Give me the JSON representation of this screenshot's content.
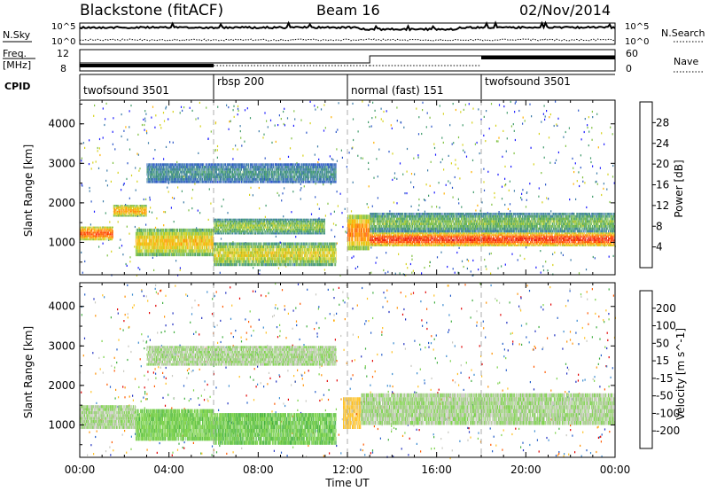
{
  "header": {
    "title": "Blackstone (fitACF)",
    "beam": "Beam 16",
    "date": "02/Nov/2014"
  },
  "top_panels": {
    "nsky_label": "N.Sky",
    "nsearch_label": "N.Search",
    "freq_label_1": "Freq.",
    "freq_label_2": "[MHz]",
    "nave_label": "Nave",
    "cpid_label": "CPID",
    "left_tick_top": "10^5",
    "left_tick_bottom": "10^0",
    "right_tick_top": "10^5",
    "right_tick_bottom": "10^0",
    "freq_tick_top": "12",
    "freq_tick_bottom": "8",
    "nave_tick_top": "60",
    "nave_tick_bottom": "0"
  },
  "cpid_segments": [
    {
      "label": "twofsound 3501",
      "start_hour": 0
    },
    {
      "label": "rbsp 200",
      "start_hour": 6
    },
    {
      "label": "normal (fast) 151",
      "start_hour": 12
    },
    {
      "label": "twofsound 3501",
      "start_hour": 18
    }
  ],
  "axes": {
    "ylabel": "Slant Range [km]",
    "xlabel": "Time UT",
    "xticks": [
      "00:00",
      "04:00",
      "08:00",
      "12:00",
      "16:00",
      "20:00",
      "00:00"
    ],
    "yticks": [
      "1000",
      "2000",
      "3000",
      "4000"
    ]
  },
  "power_colorbar": {
    "label": "Power [dB]",
    "ticks": [
      "4",
      "8",
      "12",
      "16",
      "20",
      "24",
      "28"
    ],
    "colors": [
      "#1a1aff",
      "#2a55c8",
      "#3a7aa8",
      "#3f9a6a",
      "#7fc040",
      "#d6d21a",
      "#ffb000",
      "#ff7a00",
      "#ff3000",
      "#e00000"
    ]
  },
  "velocity_colorbar": {
    "label": "Velocity [m s^-1]",
    "ticks": [
      "200",
      "100",
      "50",
      "15",
      "-15",
      "-50",
      "-100",
      "-200"
    ],
    "colors": [
      "#2030c0",
      "#1f5ac8",
      "#3a8ad0",
      "#3fae3f",
      "#7cd24a",
      "#c8c8c0",
      "#ffc020",
      "#ff9000",
      "#ff5a00",
      "#e00000"
    ]
  },
  "chart_data": [
    {
      "type": "heatmap",
      "title": "Power",
      "ylabel": "Slant Range [km]",
      "xlabel": "Time UT",
      "xlim_hours": [
        0,
        24
      ],
      "ylim_km": [
        180,
        4600
      ],
      "zlim_db": [
        0,
        32
      ],
      "bands": [
        {
          "t0": 0.0,
          "t1": 1.5,
          "r0": 1050,
          "r1": 1400,
          "value": 26
        },
        {
          "t0": 1.5,
          "t1": 3.0,
          "r0": 1650,
          "r1": 1950,
          "value": 22
        },
        {
          "t0": 2.5,
          "t1": 6.0,
          "r0": 650,
          "r1": 1350,
          "value": 20
        },
        {
          "t0": 3.0,
          "t1": 11.5,
          "r0": 2500,
          "r1": 3000,
          "value": 10
        },
        {
          "t0": 6.0,
          "t1": 11.0,
          "r0": 1200,
          "r1": 1600,
          "value": 15
        },
        {
          "t0": 6.0,
          "t1": 11.5,
          "r0": 400,
          "r1": 1000,
          "value": 18
        },
        {
          "t0": 12.0,
          "t1": 13.0,
          "r0": 800,
          "r1": 1700,
          "value": 24
        },
        {
          "t0": 13.0,
          "t1": 24.0,
          "r0": 900,
          "r1": 1250,
          "value": 28
        },
        {
          "t0": 13.0,
          "t1": 24.0,
          "r0": 1250,
          "r1": 1750,
          "value": 14
        }
      ]
    },
    {
      "type": "heatmap",
      "title": "Velocity",
      "ylabel": "Slant Range [km]",
      "xlabel": "Time UT",
      "xlim_hours": [
        0,
        24
      ],
      "ylim_km": [
        180,
        4600
      ],
      "zlim_ms": [
        -250,
        250
      ],
      "bands": [
        {
          "t0": 0.0,
          "t1": 2.5,
          "r0": 900,
          "r1": 1500,
          "value": 0
        },
        {
          "t0": 2.5,
          "t1": 6.0,
          "r0": 600,
          "r1": 1400,
          "value": -40
        },
        {
          "t0": 3.0,
          "t1": 11.5,
          "r0": 2500,
          "r1": 3000,
          "value": 0
        },
        {
          "t0": 6.0,
          "t1": 11.5,
          "r0": 500,
          "r1": 1300,
          "value": -45
        },
        {
          "t0": 11.8,
          "t1": 12.6,
          "r0": 900,
          "r1": 1700,
          "value": 60
        },
        {
          "t0": 12.6,
          "t1": 24.0,
          "r0": 1000,
          "r1": 1800,
          "value": 0
        }
      ]
    }
  ]
}
